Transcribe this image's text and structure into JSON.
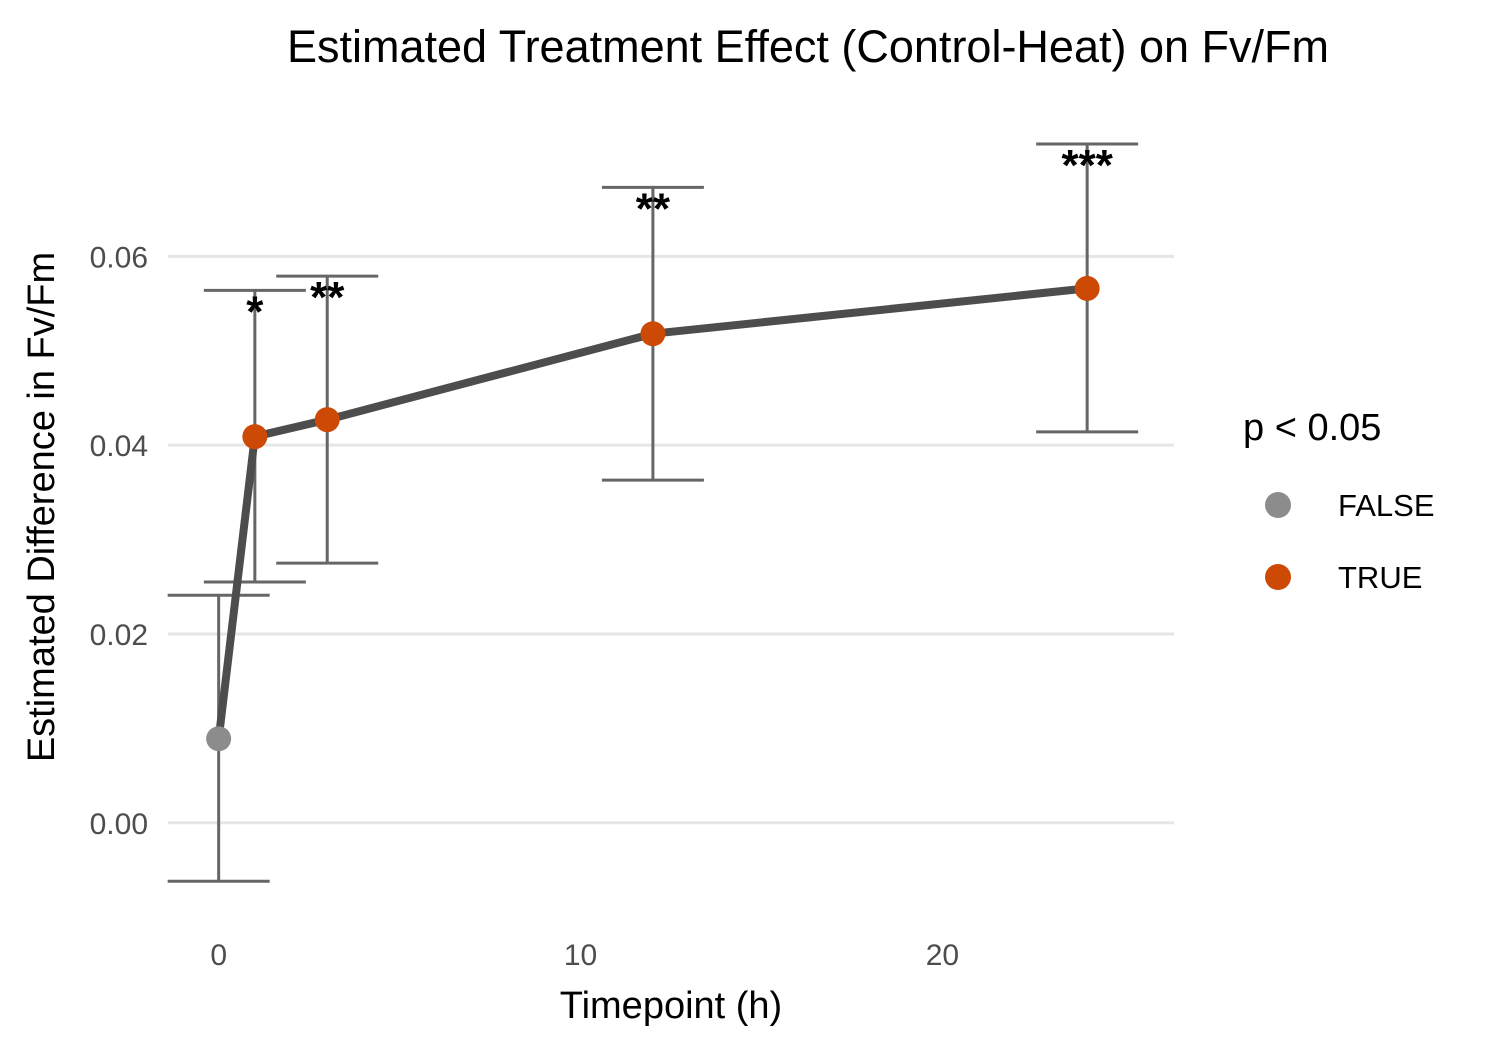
{
  "chart_data": {
    "type": "line",
    "title": "Estimated Treatment Effect (Control-Heat) on Fv/Fm",
    "xlabel": "Timepoint (h)",
    "ylabel": "Estimated Difference in Fv/Fm",
    "xlim": [
      -1.4,
      26.4
    ],
    "ylim": [
      -0.0103,
      0.0755
    ],
    "x_ticks": [
      0,
      10,
      20
    ],
    "x_tick_labels": [
      "0",
      "10",
      "20"
    ],
    "y_ticks": [
      0.0,
      0.02,
      0.04,
      0.06
    ],
    "y_tick_labels": [
      "0.00",
      "0.02",
      "0.04",
      "0.06"
    ],
    "grid": "horizontal major",
    "series": [
      {
        "points": [
          {
            "x": 0,
            "y": 0.0089,
            "lower": -0.0062,
            "upper": 0.0241,
            "significant": false,
            "sig_label": ""
          },
          {
            "x": 1,
            "y": 0.0409,
            "lower": 0.0255,
            "upper": 0.0564,
            "significant": true,
            "sig_label": "*"
          },
          {
            "x": 3,
            "y": 0.0427,
            "lower": 0.0275,
            "upper": 0.0579,
            "significant": true,
            "sig_label": "**"
          },
          {
            "x": 12,
            "y": 0.0518,
            "lower": 0.0363,
            "upper": 0.0673,
            "significant": true,
            "sig_label": "**"
          },
          {
            "x": 24,
            "y": 0.0566,
            "lower": 0.0414,
            "upper": 0.0719,
            "significant": true,
            "sig_label": "***"
          }
        ]
      }
    ],
    "legend": {
      "title": "p < 0.05",
      "position": "right",
      "entries": [
        {
          "label": "FALSE",
          "color": "#8c8c8c"
        },
        {
          "label": "TRUE",
          "color": "#cc4a06"
        }
      ]
    },
    "colors": {
      "line": "#4d4d4d",
      "errorbar": "#666666",
      "grid": "#e6e6e6",
      "false": "#8c8c8c",
      "true": "#cc4a06"
    }
  }
}
